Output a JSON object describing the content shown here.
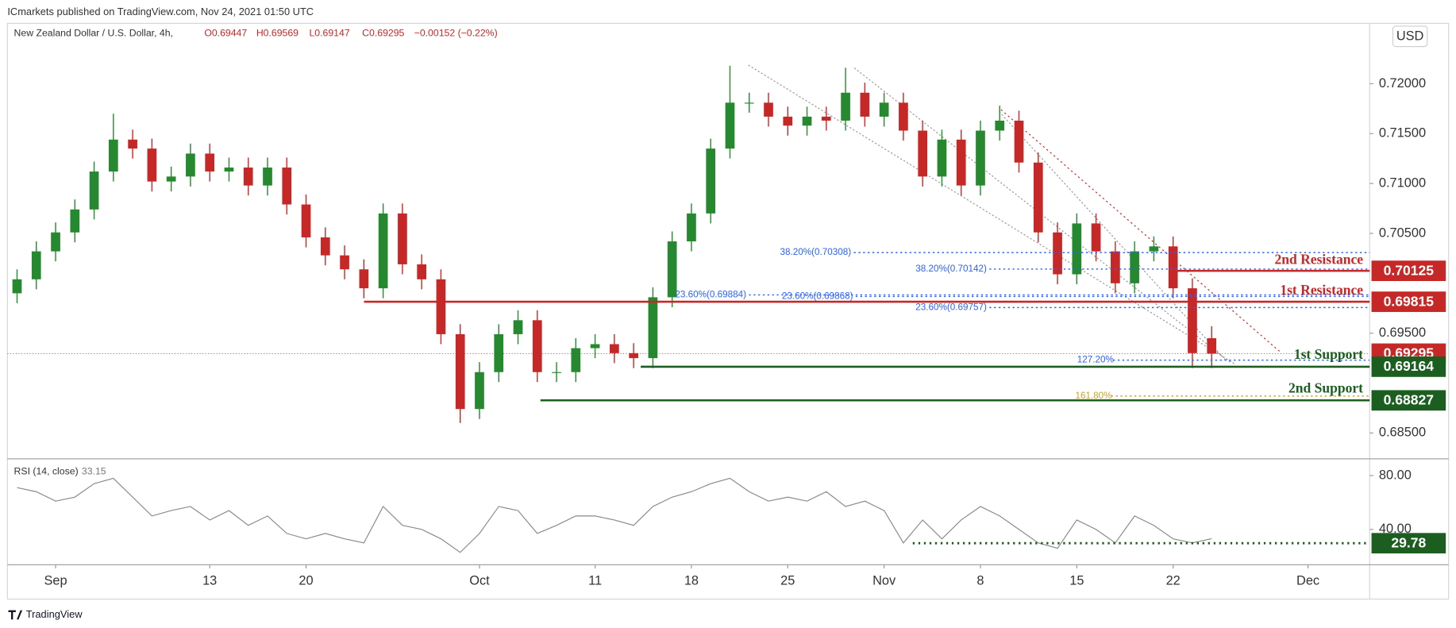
{
  "header": {
    "publisher": "ICmarkets published on TradingView.com, Nov 24, 2021 01:50 UTC",
    "symbol": "New Zealand Dollar / U.S. Dollar, 4h,",
    "ohlc": [
      "O0.69447",
      "H0.69569",
      "L0.69147",
      "C0.69295",
      "−0.00152 (−0.22%)"
    ],
    "currency_button": "USD",
    "footer": "TradingView"
  },
  "chart_data": [
    {
      "type": "candlestick",
      "up_color": "#26882f",
      "down_color": "#c62828",
      "xlim": [
        -2.5,
        68.2
      ],
      "xticks": [
        {
          "value": 0,
          "label": "Sep"
        },
        {
          "value": 8,
          "label": "13"
        },
        {
          "value": 13,
          "label": "20"
        },
        {
          "value": 22,
          "label": "Oct"
        },
        {
          "value": 28,
          "label": "11"
        },
        {
          "value": 33,
          "label": "18"
        },
        {
          "value": 38,
          "label": "25"
        },
        {
          "value": 43,
          "label": "Nov"
        },
        {
          "value": 48,
          "label": "8"
        },
        {
          "value": 53,
          "label": "15"
        },
        {
          "value": 58,
          "label": "22"
        },
        {
          "value": 65,
          "label": "Dec"
        }
      ],
      "ylim": [
        0.6825,
        0.72605
      ],
      "yticks": [
        {
          "value": 0.685,
          "label": "0.68500"
        },
        {
          "value": 0.695,
          "label": "0.69500"
        },
        {
          "value": 0.705,
          "label": "0.70500"
        },
        {
          "value": 0.71,
          "label": "0.71000"
        },
        {
          "value": 0.715,
          "label": "0.71500"
        },
        {
          "value": 0.72,
          "label": "0.72000"
        }
      ],
      "x": [
        -2,
        -1,
        0,
        1,
        2,
        3,
        4,
        5,
        6,
        7,
        8,
        9,
        10,
        11,
        12,
        13,
        14,
        15,
        16,
        17,
        18,
        19,
        20,
        21,
        22,
        23,
        24,
        25,
        26,
        27,
        28,
        29,
        30,
        31,
        32,
        33,
        34,
        35,
        36,
        37,
        38,
        39,
        40,
        41,
        42,
        43,
        44,
        45,
        46,
        47,
        48,
        49,
        50,
        51,
        52,
        53,
        54,
        55,
        56,
        57,
        58,
        59,
        60
      ],
      "open": [
        0.699,
        0.7004,
        0.7032,
        0.7051,
        0.7074,
        0.7112,
        0.7144,
        0.7135,
        0.7102,
        0.7107,
        0.713,
        0.7112,
        0.7116,
        0.7098,
        0.7116,
        0.7079,
        0.7046,
        0.7028,
        0.7014,
        0.6995,
        0.707,
        0.7019,
        0.7004,
        0.6949,
        0.6874,
        0.6911,
        0.6949,
        0.6963,
        0.6911,
        0.6911,
        0.6935,
        0.6939,
        0.693,
        0.6925,
        0.6986,
        0.7042,
        0.707,
        0.7135,
        0.7181,
        0.7181,
        0.7167,
        0.7158,
        0.7167,
        0.7163,
        0.7191,
        0.7167,
        0.7181,
        0.7153,
        0.7107,
        0.7144,
        0.7098,
        0.7153,
        0.7163,
        0.7121,
        0.7051,
        0.7009,
        0.706,
        0.7032,
        0.7,
        0.7032,
        0.7037,
        0.6995,
        0.6945
      ],
      "high": [
        0.7014,
        0.7042,
        0.7061,
        0.7084,
        0.7122,
        0.717,
        0.7154,
        0.7145,
        0.7117,
        0.714,
        0.714,
        0.7126,
        0.7126,
        0.7126,
        0.7126,
        0.7089,
        0.7056,
        0.7038,
        0.7024,
        0.708,
        0.708,
        0.7029,
        0.7014,
        0.6959,
        0.6921,
        0.6959,
        0.6973,
        0.6973,
        0.6921,
        0.6945,
        0.6949,
        0.6949,
        0.694,
        0.6996,
        0.7052,
        0.708,
        0.7145,
        0.7218,
        0.7191,
        0.7191,
        0.7177,
        0.7177,
        0.7177,
        0.7216,
        0.7201,
        0.7191,
        0.7191,
        0.7163,
        0.7154,
        0.7154,
        0.7163,
        0.7178,
        0.7173,
        0.7131,
        0.7061,
        0.707,
        0.707,
        0.7042,
        0.7042,
        0.7047,
        0.7047,
        0.7005,
        0.6957
      ],
      "low": [
        0.698,
        0.6994,
        0.7022,
        0.7041,
        0.7064,
        0.7102,
        0.7125,
        0.7092,
        0.7092,
        0.7097,
        0.7102,
        0.7102,
        0.7088,
        0.7088,
        0.7069,
        0.7036,
        0.7018,
        0.7004,
        0.6985,
        0.6985,
        0.7009,
        0.6994,
        0.6939,
        0.686,
        0.6864,
        0.6901,
        0.6939,
        0.6901,
        0.6901,
        0.6901,
        0.6925,
        0.692,
        0.6915,
        0.6915,
        0.6976,
        0.7032,
        0.706,
        0.7125,
        0.7171,
        0.7157,
        0.7148,
        0.7148,
        0.7153,
        0.7153,
        0.7157,
        0.7157,
        0.7143,
        0.7097,
        0.7097,
        0.7088,
        0.7088,
        0.7143,
        0.7111,
        0.7041,
        0.6999,
        0.6999,
        0.7022,
        0.699,
        0.699,
        0.7022,
        0.6985,
        0.6915,
        0.6915
      ],
      "close": [
        0.7004,
        0.7032,
        0.7051,
        0.7074,
        0.7112,
        0.7144,
        0.7135,
        0.7102,
        0.7107,
        0.713,
        0.7112,
        0.7116,
        0.7098,
        0.7116,
        0.7079,
        0.7046,
        0.7028,
        0.7014,
        0.6995,
        0.707,
        0.7019,
        0.7004,
        0.6949,
        0.6874,
        0.6911,
        0.6949,
        0.6963,
        0.6911,
        0.6911,
        0.6935,
        0.6939,
        0.693,
        0.6925,
        0.6986,
        0.7042,
        0.707,
        0.7135,
        0.7181,
        0.7181,
        0.7167,
        0.7158,
        0.7167,
        0.7163,
        0.7191,
        0.7167,
        0.7181,
        0.7153,
        0.7107,
        0.7144,
        0.7098,
        0.7153,
        0.7163,
        0.7121,
        0.7051,
        0.7009,
        0.706,
        0.7032,
        0.7,
        0.7032,
        0.7037,
        0.6995,
        0.693,
        0.69295
      ],
      "levels": [
        {
          "name": "2nd Resistance",
          "value": 0.70125,
          "color": "#c62828"
        },
        {
          "name": "1st Resistance",
          "value": 0.69815,
          "color": "#c62828"
        },
        {
          "value": 0.69295,
          "color": "#c62828"
        },
        {
          "name": "1st Support",
          "value": 0.69164,
          "color": "#1b5e20"
        },
        {
          "name": "2nd Support",
          "value": 0.68827,
          "color": "#1b5e20"
        }
      ],
      "fib_levels": [
        {
          "label": "38.20%(0.70308)",
          "value": 0.70308,
          "color": "#2962ff"
        },
        {
          "label": "38.20%(0.70142)",
          "value": 0.70142,
          "color": "#2962ff"
        },
        {
          "label": "23.60%(0.69884)",
          "value": 0.69884,
          "color": "#2962ff"
        },
        {
          "label": "23.60%(0.69868)",
          "value": 0.69868,
          "color": "#2962ff"
        },
        {
          "label": "23.60%(0.69757)",
          "value": 0.69757,
          "color": "#2962ff"
        },
        {
          "label": "127.20%",
          "value": 0.6923,
          "color": "#2962ff"
        },
        {
          "label": "161.80%",
          "value": 0.6887,
          "color": "#c9a227"
        }
      ]
    },
    {
      "type": "line",
      "title": "RSI (14, close)",
      "color": "#8a8a8a",
      "xlim": [
        -2.5,
        68.2
      ],
      "ylim": [
        13.8,
        91.7
      ],
      "yticks": [
        {
          "value": 40,
          "label": "40.00"
        },
        {
          "value": 80,
          "label": "80.00"
        }
      ],
      "x": [
        -2,
        -1,
        0,
        1,
        2,
        3,
        4,
        5,
        6,
        7,
        8,
        9,
        10,
        11,
        12,
        13,
        14,
        15,
        16,
        17,
        18,
        19,
        20,
        21,
        22,
        23,
        24,
        25,
        26,
        27,
        28,
        29,
        30,
        31,
        32,
        33,
        34,
        35,
        36,
        37,
        38,
        39,
        40,
        41,
        42,
        43,
        44,
        45,
        46,
        47,
        48,
        49,
        50,
        51,
        52,
        53,
        54,
        55,
        56,
        57,
        58,
        59,
        60
      ],
      "values": [
        71,
        68,
        61,
        64,
        74,
        78,
        64,
        50,
        54,
        57,
        47,
        54,
        43,
        50,
        37,
        33,
        37,
        33,
        30,
        57,
        43,
        40,
        33,
        23,
        37,
        57,
        54,
        37,
        43,
        50,
        50,
        47,
        43,
        57,
        64,
        68,
        74,
        78,
        68,
        61,
        64,
        61,
        68,
        57,
        61,
        54,
        30,
        47,
        33,
        47,
        57,
        50,
        40,
        30,
        26,
        47,
        40,
        30,
        50,
        43,
        33,
        30,
        33.15
      ],
      "level": {
        "value": 29.78,
        "color": "#1b5e20"
      }
    }
  ]
}
